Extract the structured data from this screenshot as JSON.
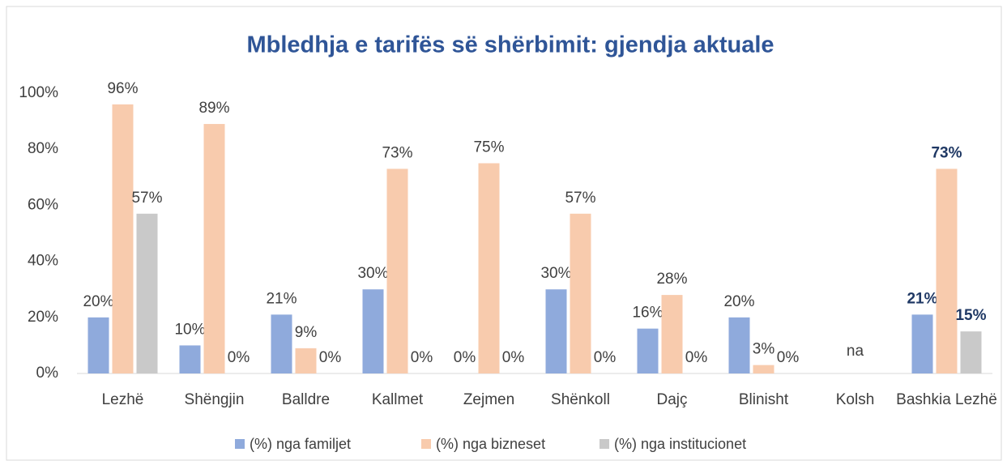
{
  "chart_data": {
    "type": "bar",
    "title": "Mbledhja e tarifës së shërbimit: gjendja aktuale",
    "categories": [
      "Lezhë",
      "Shëngjin",
      "Balldre",
      "Kallmet",
      "Zejmen",
      "Shënkoll",
      "Dajç",
      "Blinisht",
      "Kolsh",
      "Bashkia Lezhë"
    ],
    "series": [
      {
        "name": "(%) nga familjet",
        "color": "#8faadc",
        "values": [
          20,
          10,
          21,
          30,
          0,
          30,
          16,
          20,
          null,
          21
        ],
        "value_labels": [
          "20%",
          "10%",
          "21%",
          "30%",
          "0%",
          "30%",
          "16%",
          "20%",
          null,
          "21%"
        ]
      },
      {
        "name": "(%) nga bizneset",
        "color": "#f8cbad",
        "values": [
          96,
          89,
          9,
          73,
          75,
          57,
          28,
          3,
          null,
          73
        ],
        "value_labels": [
          "96%",
          "89%",
          "9%",
          "73%",
          "75%",
          "57%",
          "28%",
          "3%",
          null,
          "73%"
        ]
      },
      {
        "name": "(%) nga institucionet",
        "color": "#c9c9c9",
        "values": [
          57,
          0,
          0,
          0,
          0,
          0,
          0,
          0,
          null,
          15
        ],
        "value_labels": [
          "57%",
          "0%",
          "0%",
          "0%",
          "0%",
          "0%",
          "0%",
          "0%",
          null,
          "15%"
        ]
      }
    ],
    "annotations": [
      {
        "text": "na",
        "category": 8
      }
    ],
    "ylim": [
      0,
      100
    ],
    "yticks": [
      {
        "value": 0,
        "label": "0%"
      },
      {
        "value": 20,
        "label": "20%"
      },
      {
        "value": 40,
        "label": "40%"
      },
      {
        "value": 60,
        "label": "60%"
      },
      {
        "value": 80,
        "label": "80%"
      },
      {
        "value": 100,
        "label": "100%"
      }
    ],
    "grid": false,
    "legend": "bottom"
  }
}
